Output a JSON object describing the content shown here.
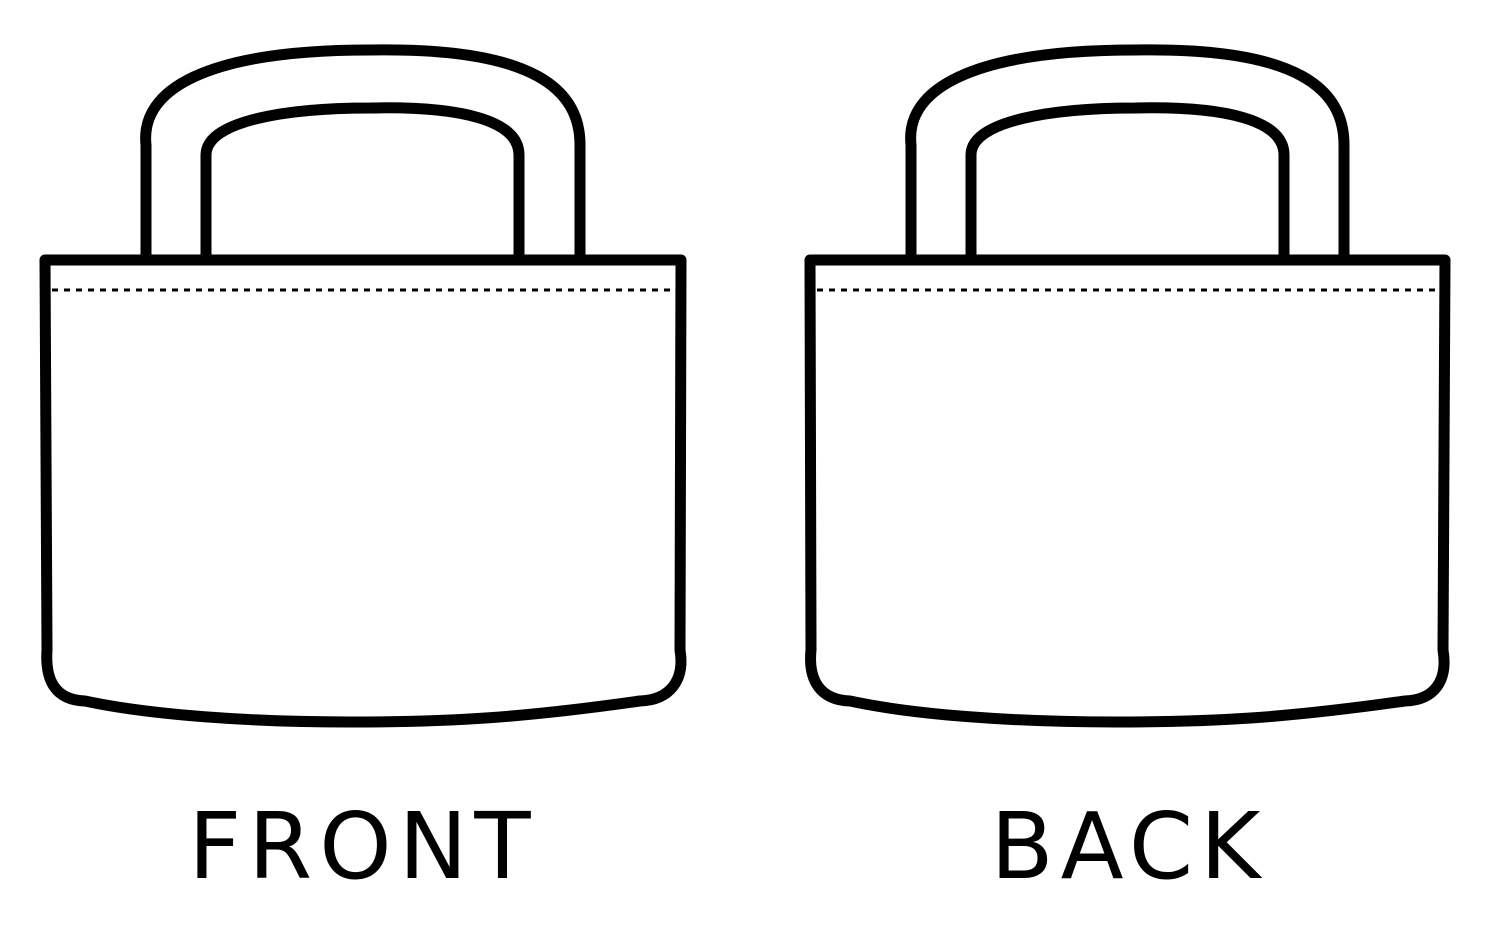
{
  "labels": {
    "front": "FRONT",
    "back": "BACK"
  },
  "colors": {
    "stroke": "#000000",
    "fill": "#ffffff",
    "background": "#ffffff"
  },
  "stitch_line": "dashed"
}
